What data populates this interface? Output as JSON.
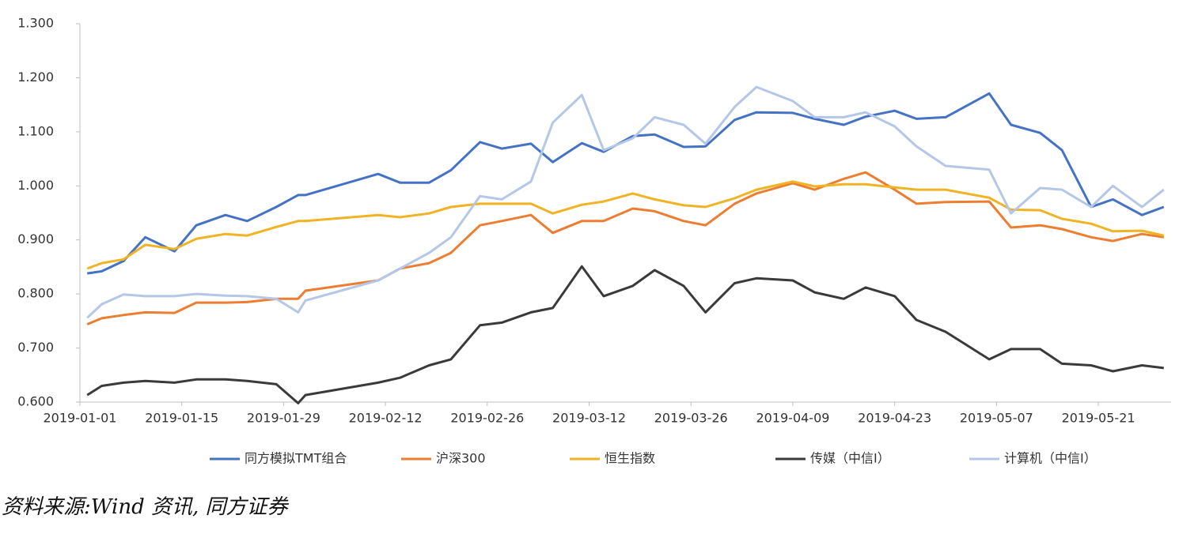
{
  "chart_data": {
    "type": "line",
    "x": [
      "2019-01-02",
      "2019-01-04",
      "2019-01-07",
      "2019-01-10",
      "2019-01-14",
      "2019-01-17",
      "2019-01-21",
      "2019-01-24",
      "2019-01-28",
      "2019-01-31",
      "2019-02-01",
      "2019-02-11",
      "2019-02-14",
      "2019-02-18",
      "2019-02-21",
      "2019-02-25",
      "2019-02-28",
      "2019-03-04",
      "2019-03-07",
      "2019-03-11",
      "2019-03-14",
      "2019-03-18",
      "2019-03-21",
      "2019-03-25",
      "2019-03-28",
      "2019-04-01",
      "2019-04-04",
      "2019-04-09",
      "2019-04-12",
      "2019-04-16",
      "2019-04-19",
      "2019-04-23",
      "2019-04-26",
      "2019-04-30",
      "2019-05-06",
      "2019-05-09",
      "2019-05-13",
      "2019-05-16",
      "2019-05-20",
      "2019-05-23",
      "2019-05-27",
      "2019-05-30"
    ],
    "series": [
      {
        "name": "同方模拟TMT组合",
        "color": "#4472c4",
        "values": [
          0.838,
          0.842,
          0.861,
          0.905,
          0.879,
          0.927,
          0.946,
          0.935,
          0.961,
          0.983,
          0.983,
          1.022,
          1.006,
          1.006,
          1.029,
          1.081,
          1.069,
          1.078,
          1.044,
          1.079,
          1.063,
          1.092,
          1.095,
          1.072,
          1.073,
          1.122,
          1.136,
          1.135,
          1.124,
          1.113,
          1.128,
          1.139,
          1.124,
          1.127,
          1.171,
          1.113,
          1.098,
          1.066,
          0.961,
          0.975,
          0.946,
          0.961
        ]
      },
      {
        "name": "沪深300",
        "color": "#ed7d31",
        "values": [
          0.744,
          0.755,
          0.761,
          0.766,
          0.765,
          0.784,
          0.784,
          0.785,
          0.791,
          0.791,
          0.806,
          0.825,
          0.847,
          0.857,
          0.876,
          0.927,
          0.935,
          0.946,
          0.913,
          0.935,
          0.935,
          0.958,
          0.953,
          0.935,
          0.927,
          0.967,
          0.986,
          1.005,
          0.993,
          1.013,
          1.025,
          0.993,
          0.967,
          0.97,
          0.971,
          0.923,
          0.927,
          0.92,
          0.905,
          0.898,
          0.911,
          0.905
        ]
      },
      {
        "name": "恒生指数",
        "color": "#f0b323",
        "values": [
          0.847,
          0.857,
          0.864,
          0.891,
          0.883,
          0.902,
          0.911,
          0.908,
          0.924,
          0.935,
          0.935,
          0.946,
          0.942,
          0.949,
          0.961,
          0.967,
          0.967,
          0.967,
          0.949,
          0.965,
          0.971,
          0.986,
          0.975,
          0.964,
          0.961,
          0.977,
          0.993,
          1.008,
          0.999,
          1.003,
          1.003,
          0.997,
          0.993,
          0.993,
          0.978,
          0.956,
          0.955,
          0.939,
          0.93,
          0.916,
          0.917,
          0.908
        ]
      },
      {
        "name": "传媒（中信I）",
        "color": "#3a3a3a",
        "values": [
          0.613,
          0.63,
          0.636,
          0.639,
          0.636,
          0.642,
          0.642,
          0.639,
          0.633,
          0.598,
          0.613,
          0.636,
          0.645,
          0.668,
          0.679,
          0.742,
          0.747,
          0.766,
          0.774,
          0.851,
          0.796,
          0.815,
          0.844,
          0.815,
          0.766,
          0.82,
          0.829,
          0.825,
          0.803,
          0.791,
          0.812,
          0.796,
          0.752,
          0.73,
          0.679,
          0.698,
          0.698,
          0.671,
          0.668,
          0.657,
          0.668,
          0.663
        ]
      },
      {
        "name": "计算机（中信I）",
        "color": "#b4c7e7",
        "values": [
          0.756,
          0.781,
          0.799,
          0.796,
          0.796,
          0.8,
          0.797,
          0.796,
          0.791,
          0.766,
          0.788,
          0.825,
          0.847,
          0.876,
          0.905,
          0.981,
          0.975,
          1.008,
          1.117,
          1.168,
          1.066,
          1.088,
          1.127,
          1.113,
          1.078,
          1.146,
          1.183,
          1.157,
          1.127,
          1.127,
          1.136,
          1.11,
          1.073,
          1.037,
          1.03,
          0.949,
          0.996,
          0.993,
          0.961,
          1.0,
          0.961,
          0.993
        ]
      }
    ],
    "xlim": [
      "2019-01-01",
      "2019-05-31"
    ],
    "xticks": [
      "2019-01-01",
      "2019-01-15",
      "2019-01-29",
      "2019-02-12",
      "2019-02-26",
      "2019-03-12",
      "2019-03-26",
      "2019-04-09",
      "2019-04-23",
      "2019-05-07",
      "2019-05-21"
    ],
    "ylim": [
      0.6,
      1.3
    ],
    "yticks": [
      {
        "value": 0.6,
        "label": "0.600"
      },
      {
        "value": 0.7,
        "label": "0.700"
      },
      {
        "value": 0.8,
        "label": "0.800"
      },
      {
        "value": 0.9,
        "label": "0.900"
      },
      {
        "value": 1.0,
        "label": "1.000"
      },
      {
        "value": 1.1,
        "label": "1.100"
      },
      {
        "value": 1.2,
        "label": "1.200"
      },
      {
        "value": 1.3,
        "label": "1.300"
      }
    ],
    "grid": false,
    "legend": "bottom",
    "source": "资料来源:Wind 资讯, 同方证券"
  }
}
